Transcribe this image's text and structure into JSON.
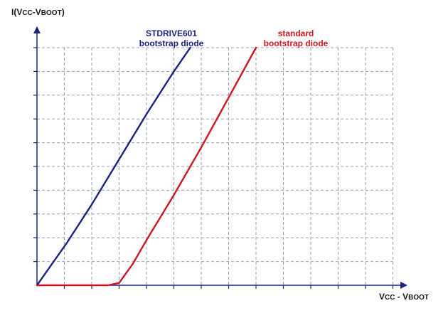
{
  "chart_data": {
    "type": "line",
    "xlabel": {
      "main": "V",
      "sub1": "CC",
      "sep": " - V",
      "sub2": "BOOT"
    },
    "ylabel": {
      "main": "I(V",
      "sub1": "CC",
      "sep": "-V",
      "sub2": "BOOT",
      "close": ")"
    },
    "x_ticks": 13,
    "y_ticks": 10,
    "xlim": [
      0,
      13
    ],
    "ylim": [
      0,
      10
    ],
    "grid": true,
    "legend_placement": "top-center",
    "series": [
      {
        "name_line1": "STDRIVE601",
        "name_line2": "bootstrap diode",
        "color": "#1a237e",
        "points": [
          [
            0,
            0
          ],
          [
            1.1,
            1.8
          ],
          [
            2,
            3.4
          ],
          [
            3,
            5.3
          ],
          [
            4,
            7.2
          ],
          [
            5,
            9.0
          ],
          [
            5.6,
            10.0
          ]
        ]
      },
      {
        "name_line1": "standard",
        "name_line2": "bootstrap diode",
        "color": "#d0161f",
        "points": [
          [
            0,
            0
          ],
          [
            2.6,
            0
          ],
          [
            3,
            0.1
          ],
          [
            3.5,
            0.9
          ],
          [
            4,
            1.9
          ],
          [
            5,
            3.8
          ],
          [
            6,
            5.8
          ],
          [
            7,
            7.9
          ],
          [
            8,
            10.0
          ]
        ]
      }
    ]
  }
}
